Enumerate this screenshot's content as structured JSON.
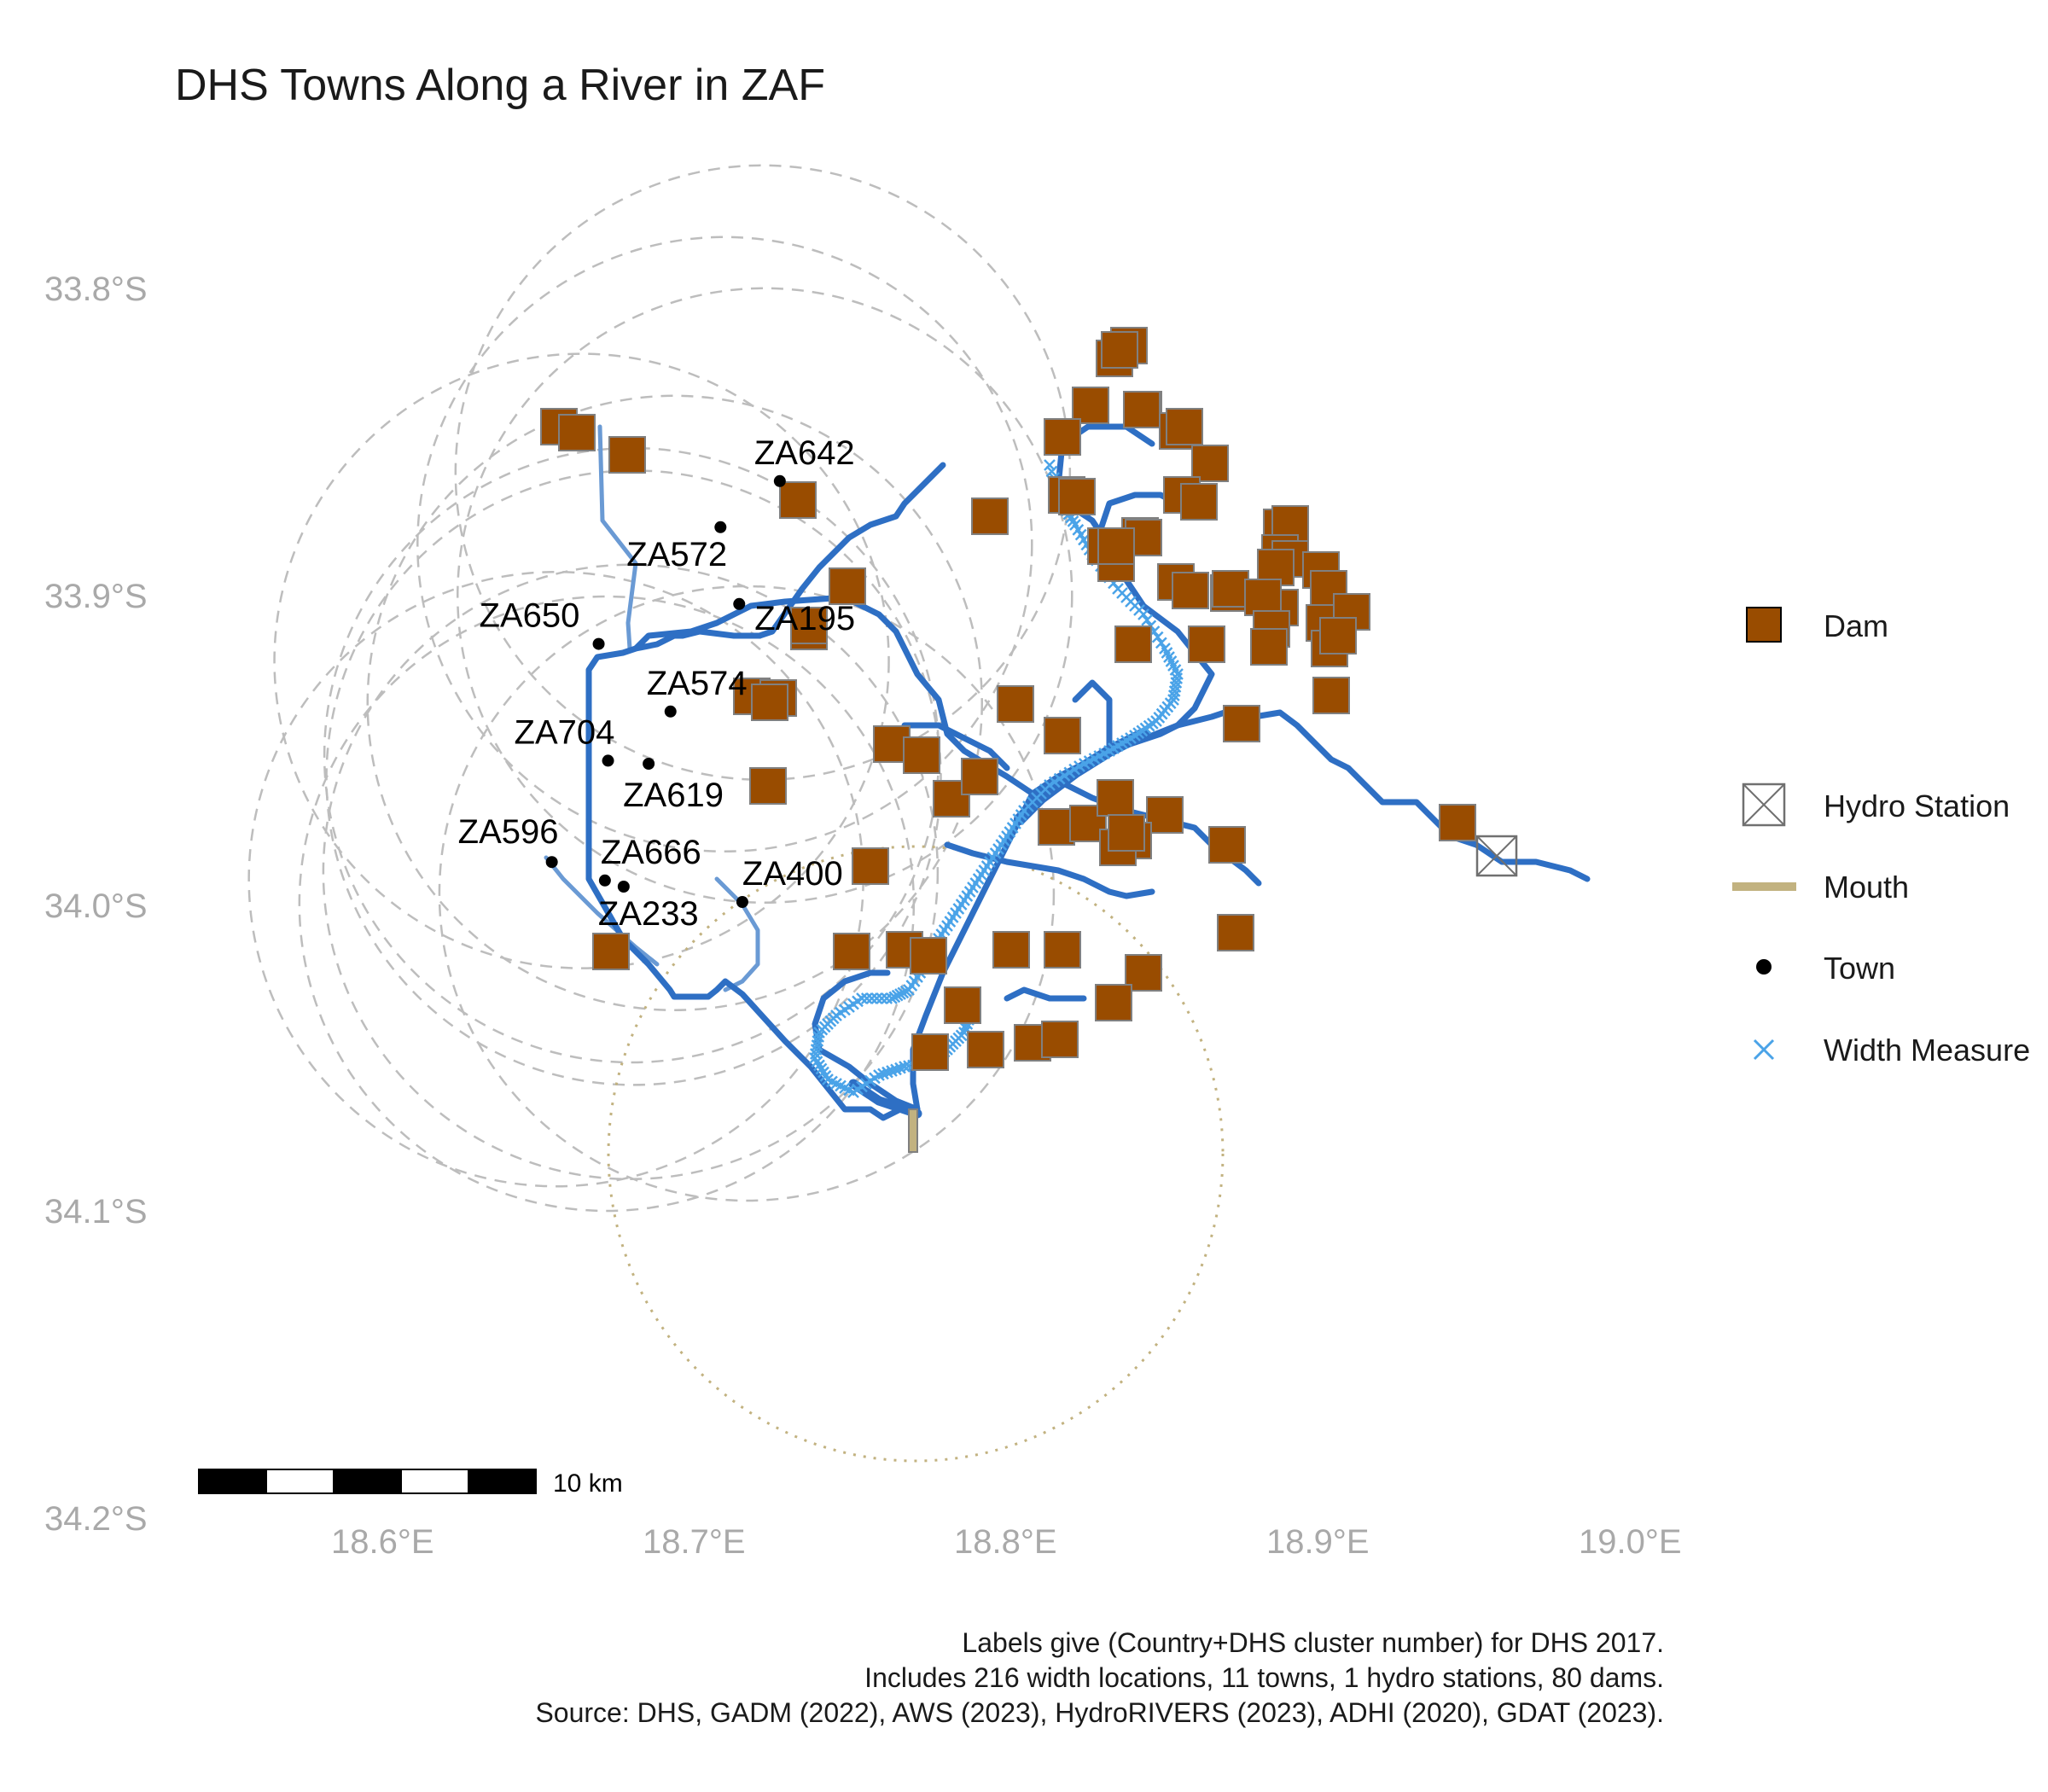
{
  "title": "DHS Towns Along a River in ZAF",
  "axes": {
    "lat_ticks": [
      "33.8°S",
      "33.9°S",
      "34.0°S",
      "34.1°S",
      "34.2°S"
    ],
    "lon_ticks": [
      "18.6°E",
      "18.7°E",
      "18.8°E",
      "18.9°E",
      "19.0°E"
    ],
    "lon_range": [
      18.54,
      19.0
    ],
    "lat_range": [
      -34.2,
      -33.77
    ]
  },
  "colors": {
    "dam_fill": "#994C00",
    "dam_border": "#808080",
    "river": "#2E6FC4",
    "tributary": "#6A9AD4",
    "width_measure": "#4AA3E8",
    "mouth": "#C2B280",
    "buffer": "#BDBDBD",
    "town": "#000000"
  },
  "legend": {
    "dam": "Dam",
    "hydro_station": "Hydro Station",
    "mouth": "Mouth",
    "town": "Town",
    "width_measure": "Width Measure"
  },
  "towns": [
    {
      "id": "ZA642",
      "lon": 18.724,
      "lat": -33.863
    },
    {
      "id": "ZA572",
      "lon": 18.705,
      "lat": -33.878
    },
    {
      "id": "ZA195",
      "lon": 18.711,
      "lat": -33.903
    },
    {
      "id": "ZA650",
      "lon": 18.666,
      "lat": -33.916
    },
    {
      "id": "ZA574",
      "lon": 18.689,
      "lat": -33.938
    },
    {
      "id": "ZA704",
      "lon": 18.669,
      "lat": -33.954
    },
    {
      "id": "ZA619",
      "lon": 18.682,
      "lat": -33.955
    },
    {
      "id": "ZA596",
      "lon": 18.651,
      "lat": -33.987
    },
    {
      "id": "ZA666",
      "lon": 18.668,
      "lat": -33.993
    },
    {
      "id": "ZA233",
      "lon": 18.674,
      "lat": -33.995
    },
    {
      "id": "ZA400",
      "lon": 18.712,
      "lat": -34.0
    }
  ],
  "hydro_station": {
    "lon": 18.956,
    "lat": -33.986
  },
  "mouth": {
    "lon": 18.768,
    "lat": -34.069
  },
  "scale_bar": {
    "label": "10 km"
  },
  "caption": [
    "Labels give (Country+DHS cluster number) for DHS 2017.",
    "Includes 216 width locations, 11 towns, 1 hydro stations, 80 dams.",
    "Source: DHS, GADM (2022), AWS (2023), HydroRIVERS (2023), ADHI (2020), GDAT (2023)."
  ]
}
